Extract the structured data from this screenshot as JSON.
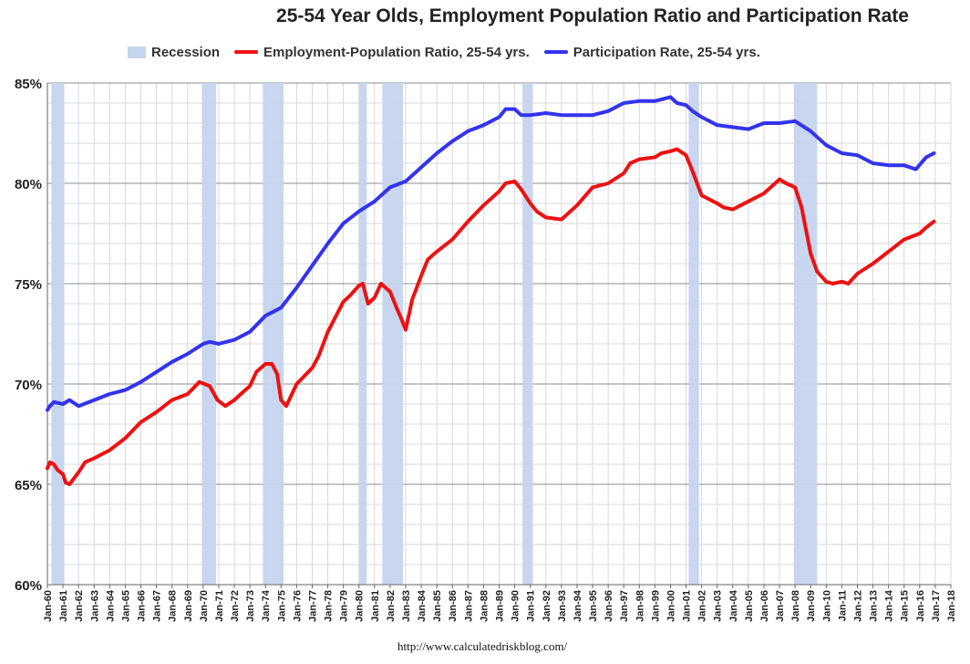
{
  "chart_data": {
    "type": "line",
    "title": "25-54 Year Olds, Employment Population Ratio and Participation Rate",
    "source": "http://www.calculatedriskblog.com/",
    "xlabel": "",
    "ylabel": "",
    "ylim": [
      60,
      85
    ],
    "y_ticks": [
      "60%",
      "65%",
      "70%",
      "75%",
      "80%",
      "85%"
    ],
    "x_ticks": [
      "Jan-60",
      "Jan-61",
      "Jan-62",
      "Jan-63",
      "Jan-64",
      "Jan-65",
      "Jan-66",
      "Jan-67",
      "Jan-68",
      "Jan-69",
      "Jan-70",
      "Jan-71",
      "Jan-72",
      "Jan-73",
      "Jan-74",
      "Jan-75",
      "Jan-76",
      "Jan-77",
      "Jan-78",
      "Jan-79",
      "Jan-80",
      "Jan-81",
      "Jan-82",
      "Jan-83",
      "Jan-84",
      "Jan-85",
      "Jan-86",
      "Jan-87",
      "Jan-88",
      "Jan-89",
      "Jan-90",
      "Jan-91",
      "Jan-92",
      "Jan-93",
      "Jan-94",
      "Jan-95",
      "Jan-96",
      "Jan-97",
      "Jan-98",
      "Jan-99",
      "Jan-00",
      "Jan-01",
      "Jan-02",
      "Jan-03",
      "Jan-04",
      "Jan-05",
      "Jan-06",
      "Jan-07",
      "Jan-08",
      "Jan-09",
      "Jan-10",
      "Jan-11",
      "Jan-12",
      "Jan-13",
      "Jan-14",
      "Jan-15",
      "Jan-16",
      "Jan-17",
      "Jan-18"
    ],
    "grid": true,
    "legend_position": "top",
    "legend": [
      {
        "name": "Recession",
        "kind": "box",
        "color": "#c5d5ee"
      },
      {
        "name": "Employment-Population Ratio, 25-54 yrs.",
        "kind": "line",
        "color": "#ee1111"
      },
      {
        "name": "Participation Rate, 25-54 yrs.",
        "kind": "line",
        "color": "#3333ee"
      }
    ],
    "recessions": [
      {
        "start": "1960-04",
        "end": "1961-02"
      },
      {
        "start": "1969-12",
        "end": "1970-11"
      },
      {
        "start": "1973-11",
        "end": "1975-03"
      },
      {
        "start": "1980-01",
        "end": "1980-07"
      },
      {
        "start": "1981-07",
        "end": "1982-11"
      },
      {
        "start": "1990-07",
        "end": "1991-03"
      },
      {
        "start": "2001-03",
        "end": "2001-11"
      },
      {
        "start": "2007-12",
        "end": "2009-06"
      }
    ],
    "series": [
      {
        "name": "Employment-Population Ratio, 25-54 yrs.",
        "color": "#ee1111",
        "x": [
          "1960-01",
          "1960-03",
          "1960-06",
          "1960-09",
          "1961-01",
          "1961-03",
          "1961-06",
          "1962-01",
          "1962-06",
          "1963-01",
          "1964-01",
          "1965-01",
          "1966-01",
          "1967-01",
          "1968-01",
          "1969-01",
          "1969-10",
          "1970-06",
          "1970-12",
          "1971-06",
          "1972-01",
          "1972-06",
          "1973-01",
          "1973-06",
          "1974-01",
          "1974-06",
          "1974-10",
          "1975-01",
          "1975-05",
          "1976-01",
          "1977-01",
          "1977-06",
          "1978-01",
          "1979-01",
          "1979-06",
          "1980-01",
          "1980-04",
          "1980-08",
          "1981-01",
          "1981-06",
          "1982-01",
          "1982-06",
          "1982-10",
          "1983-01",
          "1983-06",
          "1984-01",
          "1984-06",
          "1985-01",
          "1986-01",
          "1987-01",
          "1988-01",
          "1989-01",
          "1989-06",
          "1990-01",
          "1990-06",
          "1991-01",
          "1991-06",
          "1992-01",
          "1993-01",
          "1994-01",
          "1995-01",
          "1996-01",
          "1997-01",
          "1997-06",
          "1998-01",
          "1999-01",
          "1999-06",
          "2000-01",
          "2000-06",
          "2001-01",
          "2001-06",
          "2002-01",
          "2003-01",
          "2003-06",
          "2004-01",
          "2005-01",
          "2006-01",
          "2007-01",
          "2007-06",
          "2008-01",
          "2008-06",
          "2009-01",
          "2009-06",
          "2010-01",
          "2010-06",
          "2011-01",
          "2011-06",
          "2012-01",
          "2013-01",
          "2014-01",
          "2015-01",
          "2016-01",
          "2016-06",
          "2016-12"
        ],
        "values": [
          65.8,
          66.1,
          66.0,
          65.7,
          65.5,
          65.1,
          65.0,
          65.6,
          66.1,
          66.3,
          66.7,
          67.3,
          68.1,
          68.6,
          69.2,
          69.5,
          70.1,
          69.9,
          69.2,
          68.9,
          69.2,
          69.5,
          69.9,
          70.6,
          71.0,
          71.0,
          70.5,
          69.2,
          68.9,
          70.0,
          70.8,
          71.4,
          72.6,
          74.1,
          74.4,
          74.9,
          75.0,
          74.0,
          74.3,
          75.0,
          74.6,
          73.8,
          73.2,
          72.7,
          74.2,
          75.4,
          76.2,
          76.6,
          77.2,
          78.1,
          78.9,
          79.6,
          80.0,
          80.1,
          79.7,
          79.0,
          78.6,
          78.3,
          78.2,
          78.9,
          79.8,
          80.0,
          80.5,
          81.0,
          81.2,
          81.3,
          81.5,
          81.6,
          81.7,
          81.4,
          80.6,
          79.4,
          79.0,
          78.8,
          78.7,
          79.1,
          79.5,
          80.2,
          80.0,
          79.8,
          78.8,
          76.5,
          75.6,
          75.1,
          75.0,
          75.1,
          75.0,
          75.5,
          76.0,
          76.6,
          77.2,
          77.5,
          77.8,
          78.1
        ]
      },
      {
        "name": "Participation Rate, 25-54 yrs.",
        "color": "#3333ee",
        "x": [
          "1960-01",
          "1960-03",
          "1960-06",
          "1961-01",
          "1961-06",
          "1962-01",
          "1963-01",
          "1964-01",
          "1965-01",
          "1966-01",
          "1967-01",
          "1968-01",
          "1969-01",
          "1970-01",
          "1970-06",
          "1971-01",
          "1972-01",
          "1973-01",
          "1974-01",
          "1975-01",
          "1976-01",
          "1977-01",
          "1978-01",
          "1979-01",
          "1980-01",
          "1981-01",
          "1982-01",
          "1983-01",
          "1984-01",
          "1985-01",
          "1986-01",
          "1987-01",
          "1988-01",
          "1989-01",
          "1989-06",
          "1990-01",
          "1990-06",
          "1991-01",
          "1992-01",
          "1993-01",
          "1994-01",
          "1995-01",
          "1996-01",
          "1997-01",
          "1998-01",
          "1999-01",
          "2000-01",
          "2000-06",
          "2001-01",
          "2001-06",
          "2002-01",
          "2003-01",
          "2004-01",
          "2005-01",
          "2006-01",
          "2007-01",
          "2008-01",
          "2009-01",
          "2010-01",
          "2011-01",
          "2012-01",
          "2013-01",
          "2014-01",
          "2015-01",
          "2015-10",
          "2016-06",
          "2016-12"
        ],
        "values": [
          68.7,
          68.9,
          69.1,
          69.0,
          69.2,
          68.9,
          69.2,
          69.5,
          69.7,
          70.1,
          70.6,
          71.1,
          71.5,
          72.0,
          72.1,
          72.0,
          72.2,
          72.6,
          73.4,
          73.8,
          74.8,
          75.9,
          77.0,
          78.0,
          78.6,
          79.1,
          79.8,
          80.1,
          80.8,
          81.5,
          82.1,
          82.6,
          82.9,
          83.3,
          83.7,
          83.7,
          83.4,
          83.4,
          83.5,
          83.4,
          83.4,
          83.4,
          83.6,
          84.0,
          84.1,
          84.1,
          84.3,
          84.0,
          83.9,
          83.6,
          83.3,
          82.9,
          82.8,
          82.7,
          83.0,
          83.0,
          83.1,
          82.6,
          81.9,
          81.5,
          81.4,
          81.0,
          80.9,
          80.9,
          80.7,
          81.3,
          81.5
        ]
      }
    ]
  }
}
